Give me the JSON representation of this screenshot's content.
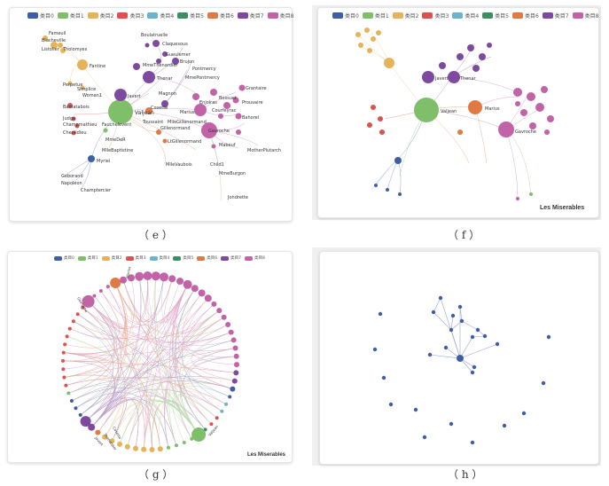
{
  "legend": {
    "categories": [
      {
        "label": "类目0",
        "color": "#3f5ea8"
      },
      {
        "label": "类目1",
        "color": "#7fbf6a"
      },
      {
        "label": "类目2",
        "color": "#e6b35a"
      },
      {
        "label": "类目3",
        "color": "#d9534f"
      },
      {
        "label": "类目4",
        "color": "#6bb3cf"
      },
      {
        "label": "类目5",
        "color": "#3e8e63"
      },
      {
        "label": "类目6",
        "color": "#e07a45"
      },
      {
        "label": "类目7",
        "color": "#7d4aa0"
      },
      {
        "label": "类目8",
        "color": "#c263a8"
      }
    ]
  },
  "captions": {
    "e": "（ e ）",
    "f": "（ f ）",
    "g": "（ g ）",
    "h": "（ h ）"
  },
  "watermarks": {
    "f": "Les Miserables",
    "g": "Les Miserables"
  },
  "panel_e": {
    "labels": {
      "Fameuil": "Fameuil",
      "Blacheville": "Blacheville",
      "Listolier": "Listolier",
      "Tholomyes": "Tholomyes",
      "Fantine": "Fantine",
      "Perpetue": "Perpetue",
      "Simplice": "Simplice",
      "Woman1": "Woman1",
      "Bamatabois": "Bamatabois",
      "Judge": "Judge",
      "Champmathieu": "Champmathieu",
      "Chenildieu": "Chenildieu",
      "Fauchelevent": "Fauchelevent",
      "MmeDeR": "MmeDeR",
      "MlleBaptistine": "MlleBaptistine",
      "Myriel": "Myriel",
      "Geborand": "Geborand",
      "Napoleon": "Napoleon",
      "Champtercier": "Champtercier",
      "Valjean": "Valjean",
      "Javert": "Javert",
      "Thenardier": "Thenar",
      "MmeThenardier": "MmeThenardier",
      "Boulatruelle": "Boulatruelle",
      "Claquesous": "Claquesous",
      "Gueulemer": "Gueulemer",
      "Brujon": "Brujon",
      "Pontmercy": "Pontmercy",
      "MmePontmercy": "MmePontmercy",
      "Magnon": "Magnon",
      "Cosette": "Cosette",
      "Marius": "Marius",
      "Toussaint": "Toussaint",
      "MlleGillenormand": "MlleGillenormand",
      "Gillenormand": "Gillenormand",
      "LtGillenormand": "LtGillenormand",
      "MlleVaubois": "MlleVaubois",
      "Grantaire": "Grantaire",
      "Bossuet": "Bossuet",
      "Prouvaire": "Prouvaire",
      "Courfeyrac": "Courfeyrac",
      "Enjolras": "Enjolras",
      "Bahorel": "Bahorel",
      "Gavroche": "Gavroche",
      "Mabeuf": "Mabeuf",
      "MotherPlutarch": "MotherPlutarch",
      "Child1": "Child1",
      "MmeBurgon": "MmeBurgon",
      "Jondrette": "Jondrette"
    }
  },
  "panel_f": {
    "labels": {
      "Valjean": "Valjean",
      "Marius": "Marius",
      "Gavroche": "Gavroche",
      "Javert": "Javert",
      "Thenardier": "Thenar"
    }
  },
  "panel_g": {
    "labels": {
      "Gavroche": "Gavroche",
      "Marius": "Marius",
      "Valjean": "Valjean",
      "Javert": "Javert",
      "Thenardier": "Thenardier",
      "Cosette": "Cosette"
    }
  }
}
